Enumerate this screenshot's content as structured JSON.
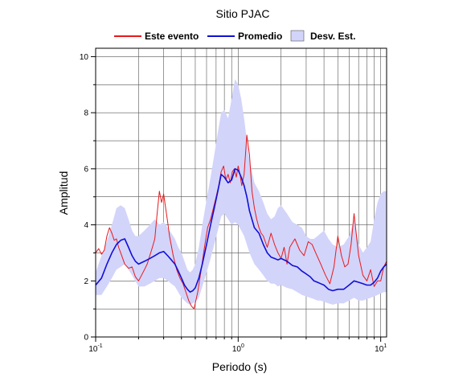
{
  "chart_data": {
    "type": "line",
    "title": "Sitio PJAC",
    "xlabel": "Periodo (s)",
    "ylabel": "Amplitud",
    "xscale": "log",
    "xlim": [
      0.1,
      11
    ],
    "ylim": [
      0,
      10.3
    ],
    "grid": true,
    "legend_position": "top",
    "x_tick_labels": [
      {
        "value": 0.1,
        "base": "10",
        "exp": "-1"
      },
      {
        "value": 1,
        "base": "10",
        "exp": "0"
      },
      {
        "value": 10,
        "base": "10",
        "exp": "1"
      }
    ],
    "y_ticks": [
      0,
      2,
      4,
      6,
      8,
      10
    ],
    "legend": [
      {
        "label": "Este evento",
        "kind": "line",
        "color": "#e8191c"
      },
      {
        "label": "Promedio",
        "kind": "line",
        "color": "#1010d8"
      },
      {
        "label": "Desv. Est.",
        "kind": "band",
        "color": "#d3d4fa"
      }
    ],
    "series": [
      {
        "name": "Este evento",
        "color": "#e8191c",
        "x": [
          0.1,
          0.105,
          0.11,
          0.115,
          0.12,
          0.125,
          0.13,
          0.135,
          0.14,
          0.145,
          0.15,
          0.16,
          0.17,
          0.18,
          0.19,
          0.2,
          0.21,
          0.22,
          0.23,
          0.24,
          0.25,
          0.26,
          0.27,
          0.28,
          0.29,
          0.3,
          0.31,
          0.32,
          0.33,
          0.35,
          0.37,
          0.39,
          0.41,
          0.43,
          0.45,
          0.47,
          0.49,
          0.5,
          0.52,
          0.55,
          0.58,
          0.61,
          0.64,
          0.67,
          0.7,
          0.73,
          0.76,
          0.79,
          0.82,
          0.85,
          0.88,
          0.91,
          0.94,
          0.97,
          1.0,
          1.03,
          1.06,
          1.1,
          1.15,
          1.2,
          1.25,
          1.3,
          1.35,
          1.4,
          1.45,
          1.5,
          1.6,
          1.7,
          1.8,
          1.9,
          2.0,
          2.1,
          2.2,
          2.3,
          2.5,
          2.7,
          2.9,
          3.1,
          3.3,
          3.5,
          3.8,
          4.1,
          4.4,
          4.7,
          5.0,
          5.3,
          5.6,
          5.9,
          6.2,
          6.5,
          7.0,
          7.5,
          8.0,
          8.5,
          9.0,
          9.5,
          10.0,
          10.5,
          11.0
        ],
        "values": [
          3.0,
          3.15,
          2.95,
          3.1,
          3.6,
          3.9,
          3.7,
          3.45,
          3.5,
          3.2,
          3.0,
          2.6,
          2.45,
          2.5,
          2.15,
          2.0,
          2.2,
          2.4,
          2.6,
          2.9,
          3.2,
          3.5,
          4.4,
          5.2,
          4.8,
          5.1,
          4.6,
          4.1,
          3.6,
          2.9,
          2.4,
          2.1,
          1.9,
          1.6,
          1.3,
          1.1,
          1.0,
          1.2,
          1.6,
          2.4,
          3.2,
          3.9,
          4.2,
          4.6,
          5.0,
          5.4,
          5.9,
          6.1,
          5.6,
          5.8,
          5.5,
          5.9,
          6.0,
          5.7,
          6.1,
          5.8,
          5.4,
          5.8,
          7.2,
          6.5,
          5.2,
          4.6,
          4.2,
          3.9,
          3.7,
          3.6,
          3.2,
          3.7,
          3.3,
          3.0,
          2.8,
          3.2,
          2.6,
          3.2,
          3.5,
          3.1,
          2.9,
          3.4,
          3.3,
          3.0,
          2.6,
          2.2,
          1.9,
          2.5,
          3.6,
          2.9,
          2.5,
          2.6,
          3.3,
          4.4,
          2.9,
          2.2,
          2.0,
          2.4,
          1.8,
          2.0,
          2.0,
          2.5,
          2.7
        ]
      },
      {
        "name": "Promedio",
        "color": "#1010d8",
        "x": [
          0.1,
          0.11,
          0.12,
          0.13,
          0.14,
          0.15,
          0.16,
          0.17,
          0.18,
          0.19,
          0.2,
          0.22,
          0.24,
          0.26,
          0.28,
          0.3,
          0.32,
          0.34,
          0.36,
          0.38,
          0.4,
          0.42,
          0.44,
          0.46,
          0.48,
          0.5,
          0.53,
          0.56,
          0.6,
          0.64,
          0.68,
          0.72,
          0.76,
          0.8,
          0.85,
          0.9,
          0.95,
          1.0,
          1.05,
          1.1,
          1.15,
          1.2,
          1.3,
          1.4,
          1.5,
          1.6,
          1.7,
          1.8,
          1.9,
          2.0,
          2.2,
          2.4,
          2.6,
          2.8,
          3.0,
          3.2,
          3.4,
          3.6,
          3.8,
          4.0,
          4.3,
          4.6,
          5.0,
          5.5,
          6.0,
          6.5,
          7.0,
          7.5,
          8.0,
          8.5,
          9.0,
          9.5,
          10.0,
          10.5,
          11.0
        ],
        "values": [
          1.85,
          2.1,
          2.6,
          3.0,
          3.3,
          3.45,
          3.5,
          3.2,
          2.9,
          2.7,
          2.6,
          2.7,
          2.8,
          2.9,
          3.0,
          3.05,
          2.9,
          2.75,
          2.6,
          2.35,
          2.1,
          1.85,
          1.7,
          1.6,
          1.65,
          1.75,
          2.1,
          2.6,
          3.3,
          4.0,
          4.6,
          5.2,
          5.8,
          5.7,
          5.5,
          5.6,
          6.0,
          5.95,
          5.7,
          5.4,
          5.0,
          4.5,
          3.9,
          3.7,
          3.3,
          3.0,
          2.85,
          2.8,
          2.75,
          2.8,
          2.7,
          2.55,
          2.5,
          2.35,
          2.25,
          2.15,
          2.0,
          1.95,
          1.9,
          1.85,
          1.7,
          1.65,
          1.7,
          1.7,
          1.85,
          2.0,
          1.95,
          1.9,
          1.85,
          1.85,
          1.95,
          2.1,
          2.35,
          2.5,
          2.6
        ]
      },
      {
        "name": "Desv. Est.",
        "kind": "band",
        "color": "#d3d4fa",
        "x": [
          0.1,
          0.11,
          0.12,
          0.13,
          0.14,
          0.15,
          0.16,
          0.17,
          0.18,
          0.19,
          0.2,
          0.22,
          0.24,
          0.26,
          0.28,
          0.3,
          0.32,
          0.34,
          0.36,
          0.38,
          0.4,
          0.42,
          0.44,
          0.46,
          0.48,
          0.5,
          0.53,
          0.56,
          0.6,
          0.64,
          0.68,
          0.72,
          0.76,
          0.8,
          0.85,
          0.9,
          0.95,
          1.0,
          1.05,
          1.1,
          1.15,
          1.2,
          1.3,
          1.4,
          1.5,
          1.6,
          1.7,
          1.8,
          1.9,
          2.0,
          2.2,
          2.4,
          2.6,
          2.8,
          3.0,
          3.2,
          3.4,
          3.6,
          3.8,
          4.0,
          4.3,
          4.6,
          5.0,
          5.5,
          6.0,
          6.5,
          7.0,
          7.5,
          8.0,
          8.5,
          9.0,
          9.5,
          10.0,
          10.5,
          11.0
        ],
        "upper": [
          2.3,
          2.9,
          3.4,
          4.0,
          4.6,
          4.7,
          4.6,
          4.2,
          3.8,
          3.6,
          3.6,
          3.8,
          4.0,
          4.2,
          4.0,
          4.1,
          3.9,
          3.7,
          3.5,
          3.2,
          3.0,
          2.7,
          2.4,
          2.3,
          2.4,
          2.6,
          3.2,
          4.0,
          4.9,
          5.7,
          6.5,
          7.3,
          8.0,
          8.1,
          7.8,
          8.5,
          9.2,
          9.0,
          8.5,
          7.8,
          7.0,
          6.3,
          5.5,
          5.2,
          4.8,
          4.4,
          4.2,
          4.3,
          4.6,
          4.7,
          4.4,
          4.1,
          4.0,
          3.9,
          3.6,
          3.5,
          3.5,
          3.6,
          3.7,
          3.8,
          3.5,
          3.3,
          3.2,
          3.3,
          3.6,
          4.2,
          3.3,
          3.0,
          3.2,
          3.4,
          4.2,
          4.8,
          5.1,
          5.2,
          5.2
        ],
        "lower": [
          1.5,
          1.5,
          1.8,
          2.1,
          2.4,
          2.5,
          2.6,
          2.4,
          2.2,
          2.0,
          1.8,
          1.8,
          1.9,
          2.0,
          2.1,
          2.1,
          2.0,
          1.9,
          1.8,
          1.6,
          1.4,
          1.3,
          1.2,
          1.15,
          1.2,
          1.25,
          1.4,
          1.8,
          2.3,
          2.8,
          3.3,
          3.8,
          4.3,
          4.4,
          4.2,
          4.0,
          4.1,
          4.0,
          3.8,
          3.6,
          3.3,
          3.0,
          2.6,
          2.4,
          2.2,
          2.0,
          1.9,
          1.9,
          1.8,
          1.85,
          1.75,
          1.7,
          1.6,
          1.5,
          1.45,
          1.4,
          1.35,
          1.3,
          1.3,
          1.25,
          1.2,
          1.15,
          1.2,
          1.2,
          1.3,
          1.4,
          1.3,
          1.3,
          1.35,
          1.4,
          1.45,
          1.5,
          1.55,
          1.6,
          1.6
        ]
      }
    ]
  }
}
